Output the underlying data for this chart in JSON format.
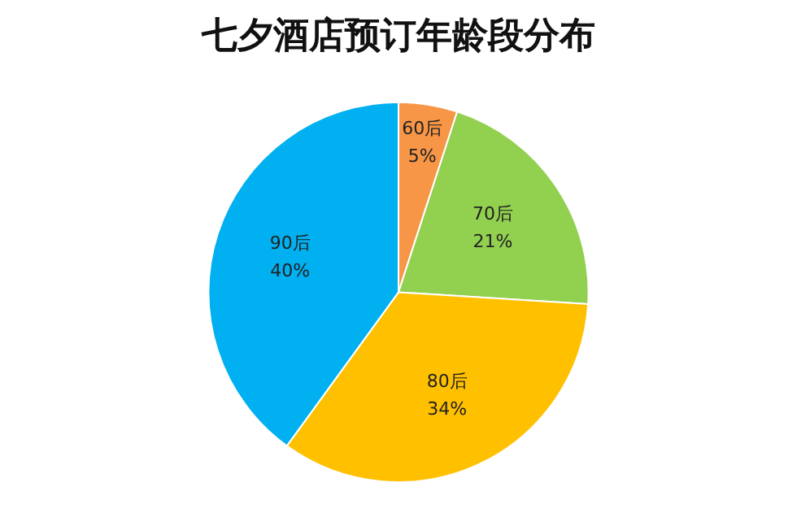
{
  "chart_data": {
    "type": "pie",
    "title": "七夕酒店预订年龄段分布",
    "categories": [
      "60后",
      "70后",
      "80后",
      "90后"
    ],
    "values": [
      5,
      21,
      34,
      40
    ],
    "colors": [
      "#f79646",
      "#92d050",
      "#ffc000",
      "#00b0f0"
    ],
    "value_labels": [
      "5%",
      "21%",
      "34%",
      "40%"
    ],
    "legend": false
  }
}
